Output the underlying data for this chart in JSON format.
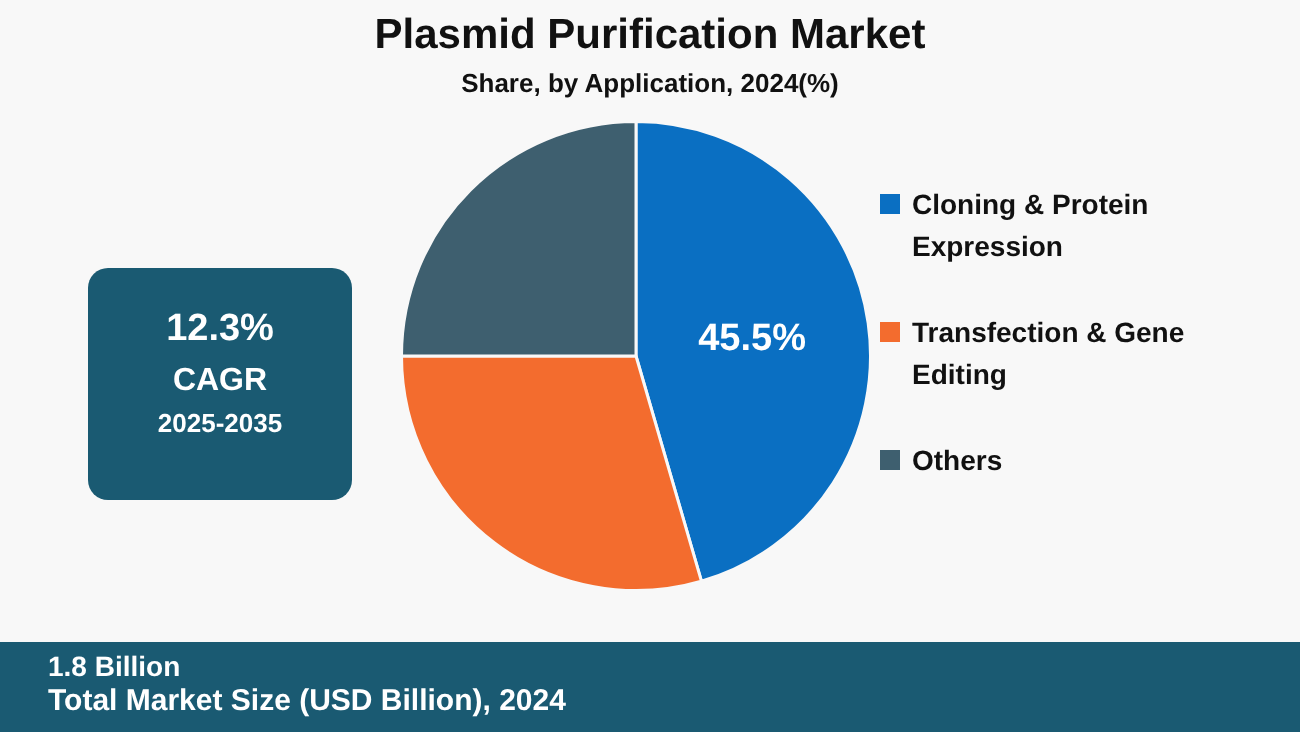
{
  "chart_data": {
    "type": "pie",
    "title": "Plasmid Purification Market",
    "subtitle": "Share, by Application, 2024(%)",
    "categories": [
      "Cloning & Protein Expression",
      "Transfection & Gene Editing",
      "Others"
    ],
    "values": [
      45.5,
      29.5,
      25
    ],
    "value_labels": [
      "45.5%",
      null,
      null
    ],
    "colors": [
      "#0a6fc2",
      "#f36c2e",
      "#3e5f6f"
    ],
    "legend": "right",
    "annotations": [
      "12.3%",
      "CAGR",
      "2025-2035",
      "1.8 Billion",
      "Total Market Size (USD Billion), 2024"
    ]
  }
}
